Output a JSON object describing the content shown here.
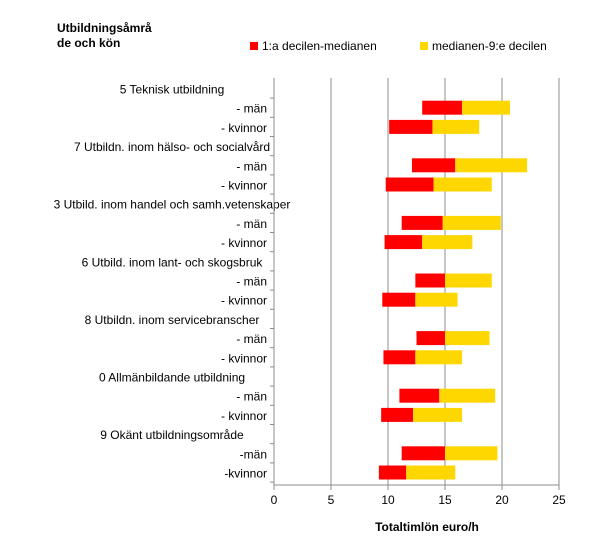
{
  "chart_data": {
    "type": "bar",
    "orientation": "horizontal",
    "stacked": "floating",
    "title": "Utbildningsåmrå de och kön",
    "title_lines": [
      "Utbildningsåmrå",
      "de och kön"
    ],
    "xlabel": "Totaltimlön euro/h",
    "ylabel": "",
    "xlim": [
      0,
      25
    ],
    "xticks": [
      0,
      5,
      10,
      15,
      20,
      25
    ],
    "grid": true,
    "legend_position": "top-right",
    "series": [
      {
        "name": "1:a decilen-medianen",
        "color": "#ff0000"
      },
      {
        "name": "medianen-9:e decilen",
        "color": "#ffd700"
      }
    ],
    "categories": [
      {
        "label": "5 Teknisk utbildning",
        "is_group": true
      },
      {
        "label": "- män",
        "is_group": false,
        "d1": 13.0,
        "median": 16.5,
        "d9": 20.7
      },
      {
        "label": "- kvinnor",
        "is_group": false,
        "d1": 10.1,
        "median": 13.9,
        "d9": 18.0
      },
      {
        "label": "7 Utbildn. inom hälso- och socialvård",
        "is_group": true
      },
      {
        "label": "- män",
        "is_group": false,
        "d1": 12.1,
        "median": 15.9,
        "d9": 22.2
      },
      {
        "label": "- kvinnor",
        "is_group": false,
        "d1": 9.8,
        "median": 14.0,
        "d9": 19.1
      },
      {
        "label": "3 Utbild. inom handel och samh.vetenskaper",
        "is_group": true
      },
      {
        "label": "-  män",
        "is_group": false,
        "d1": 11.2,
        "median": 14.8,
        "d9": 19.9
      },
      {
        "label": "- kvinnor",
        "is_group": false,
        "d1": 9.7,
        "median": 13.0,
        "d9": 17.4
      },
      {
        "label": "6 Utbild. inom lant- och skogsbruk",
        "is_group": true
      },
      {
        "label": "- män",
        "is_group": false,
        "d1": 12.4,
        "median": 15.0,
        "d9": 19.1
      },
      {
        "label": "- kvinnor",
        "is_group": false,
        "d1": 9.5,
        "median": 12.4,
        "d9": 16.1
      },
      {
        "label": "8 Utbildn. inom servicebranscher",
        "is_group": true
      },
      {
        "label": "- män",
        "is_group": false,
        "d1": 12.5,
        "median": 15.0,
        "d9": 18.9
      },
      {
        "label": "- kvinnor",
        "is_group": false,
        "d1": 9.6,
        "median": 12.4,
        "d9": 16.5
      },
      {
        "label": "0 Allmänbildande utbildning",
        "is_group": true
      },
      {
        "label": "- män",
        "is_group": false,
        "d1": 11.0,
        "median": 14.5,
        "d9": 19.4
      },
      {
        "label": "- kvinnor",
        "is_group": false,
        "d1": 9.4,
        "median": 12.2,
        "d9": 16.5
      },
      {
        "label": "9 Okänt utbildningsområde",
        "is_group": true
      },
      {
        "label": "-män",
        "is_group": false,
        "d1": 11.2,
        "median": 15.0,
        "d9": 19.6
      },
      {
        "label": "-kvinnor",
        "is_group": false,
        "d1": 9.2,
        "median": 11.6,
        "d9": 15.9
      }
    ]
  }
}
